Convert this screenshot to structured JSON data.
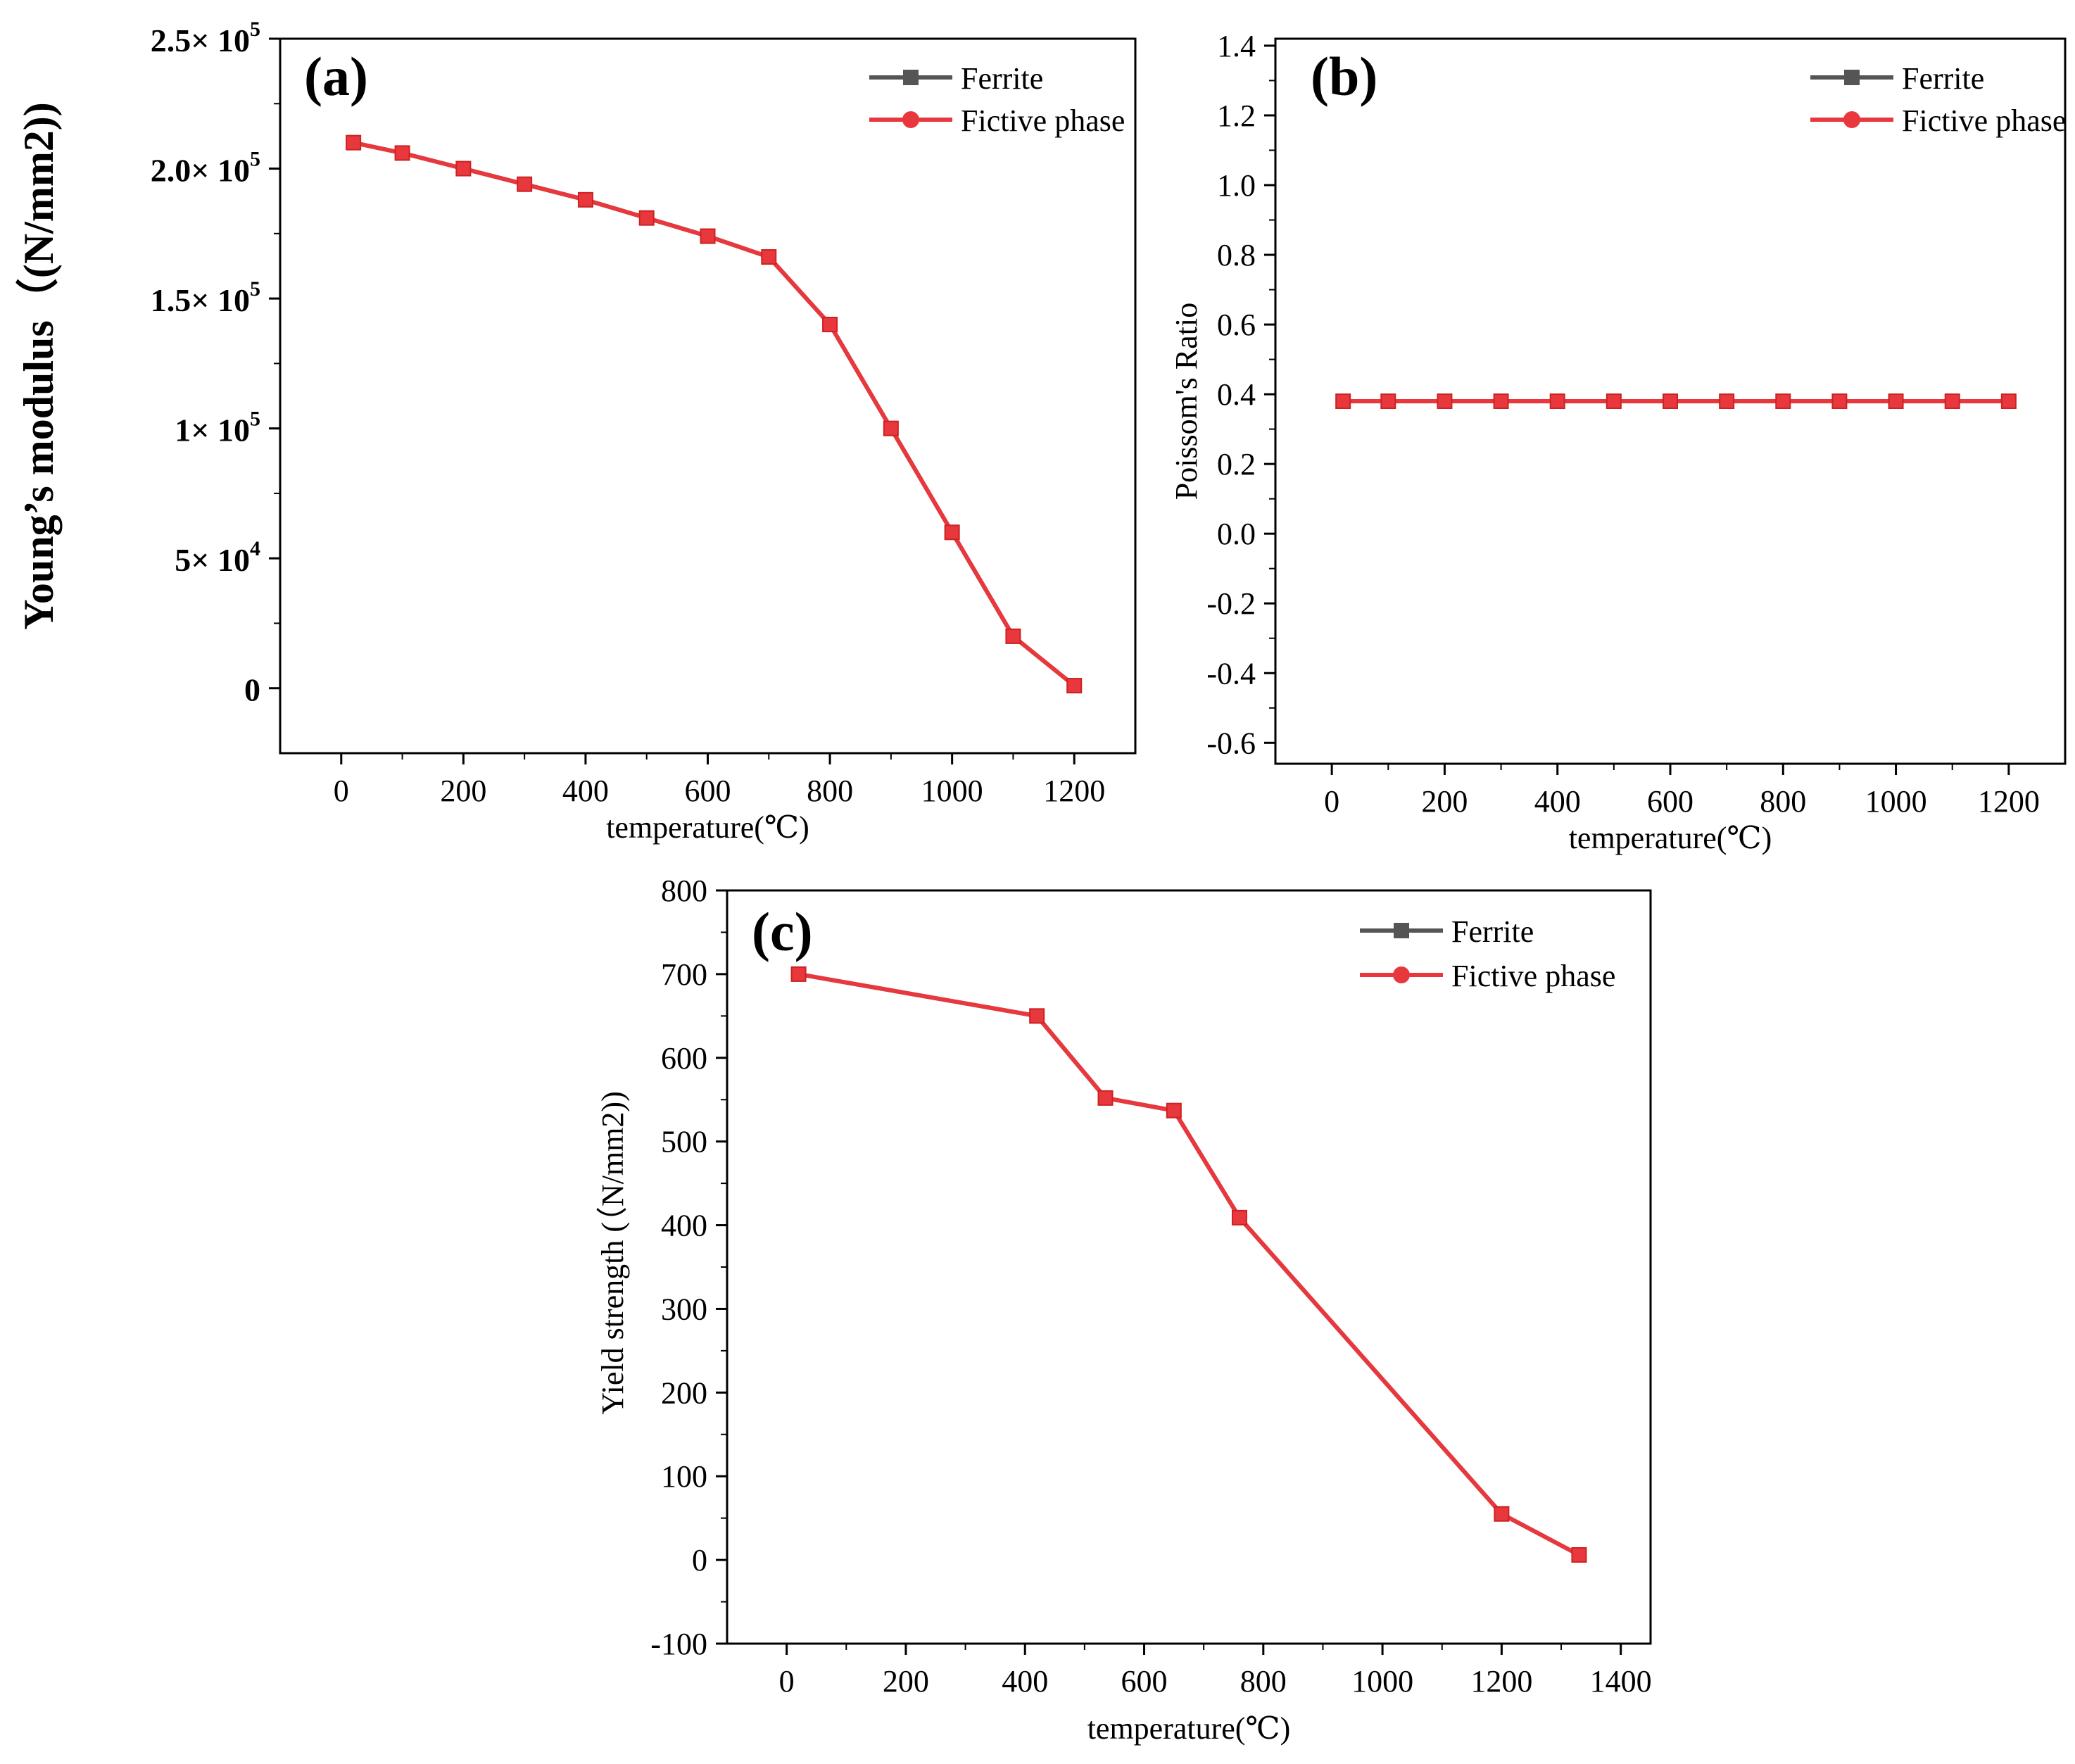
{
  "chart_data": [
    {
      "type": "line",
      "panel_label": "(a)",
      "xlabel": "temperature(℃)",
      "ylabel": "Young’s modulus（(N/mm2))",
      "xlim": [
        -100,
        1300
      ],
      "ylim": [
        -25000,
        250000
      ],
      "x_ticks": [
        0,
        200,
        400,
        600,
        800,
        1000,
        1200
      ],
      "x_tick_labels": [
        "0",
        "200",
        "400",
        "600",
        "800",
        "1000",
        "1200"
      ],
      "y_ticks": [
        0,
        50000,
        100000,
        150000,
        200000,
        250000
      ],
      "y_tick_labels": [
        {
          "mantissa": "0",
          "exp": ""
        },
        {
          "mantissa": "5× 10",
          "exp": "4"
        },
        {
          "mantissa": "1× 10",
          "exp": "5"
        },
        {
          "mantissa": "1.5× 10",
          "exp": "5"
        },
        {
          "mantissa": "2.0× 10",
          "exp": "5"
        },
        {
          "mantissa": "2.5× 10",
          "exp": "5"
        }
      ],
      "legend": [
        "Ferrite",
        "Fictive phase"
      ],
      "series": [
        {
          "name": "Ferrite",
          "color": "#555555",
          "marker": "square",
          "x": [
            20,
            100,
            200,
            300,
            400,
            500,
            600,
            700,
            800,
            900,
            1000,
            1100,
            1200
          ],
          "values": [
            210000,
            206000,
            200000,
            194000,
            188000,
            181000,
            174000,
            166000,
            140000,
            100000,
            60000,
            20000,
            1000
          ]
        },
        {
          "name": "Fictive phase",
          "color": "#e8383d",
          "marker": "circle",
          "x": [
            20,
            100,
            200,
            300,
            400,
            500,
            600,
            700,
            800,
            900,
            1000,
            1100,
            1200
          ],
          "values": [
            210000,
            206000,
            200000,
            194000,
            188000,
            181000,
            174000,
            166000,
            140000,
            100000,
            60000,
            20000,
            1000
          ]
        }
      ]
    },
    {
      "type": "line",
      "panel_label": "(b)",
      "xlabel": "temperature(℃)",
      "ylabel": "Poissom's Ratio",
      "xlim": [
        -100,
        1300
      ],
      "ylim": [
        -0.66,
        1.42
      ],
      "x_ticks": [
        0,
        200,
        400,
        600,
        800,
        1000,
        1200
      ],
      "x_tick_labels": [
        "0",
        "200",
        "400",
        "600",
        "800",
        "1000",
        "1200"
      ],
      "y_ticks": [
        -0.6,
        -0.4,
        -0.2,
        0.0,
        0.2,
        0.4,
        0.6,
        0.8,
        1.0,
        1.2,
        1.4
      ],
      "y_tick_labels": [
        "-0.6",
        "-0.4",
        "-0.2",
        "0.0",
        "0.2",
        "0.4",
        "0.6",
        "0.8",
        "1.0",
        "1.2",
        "1.4"
      ],
      "legend": [
        "Ferrite",
        "Fictive phase"
      ],
      "series": [
        {
          "name": "Ferrite",
          "color": "#555555",
          "marker": "square",
          "x": [
            20,
            100,
            200,
            300,
            400,
            500,
            600,
            700,
            800,
            900,
            1000,
            1100,
            1200
          ],
          "values": [
            0.38,
            0.38,
            0.38,
            0.38,
            0.38,
            0.38,
            0.38,
            0.38,
            0.38,
            0.38,
            0.38,
            0.38,
            0.38
          ]
        },
        {
          "name": "Fictive phase",
          "color": "#e8383d",
          "marker": "circle",
          "x": [
            20,
            100,
            200,
            300,
            400,
            500,
            600,
            700,
            800,
            900,
            1000,
            1100,
            1200
          ],
          "values": [
            0.38,
            0.38,
            0.38,
            0.38,
            0.38,
            0.38,
            0.38,
            0.38,
            0.38,
            0.38,
            0.38,
            0.38,
            0.38
          ]
        }
      ]
    },
    {
      "type": "line",
      "panel_label": "(c)",
      "xlabel": "temperature(℃)",
      "ylabel": "Yield strength (（N/mm2))",
      "xlim": [
        -100,
        1450
      ],
      "ylim": [
        -100,
        800
      ],
      "x_ticks": [
        0,
        200,
        400,
        600,
        800,
        1000,
        1200,
        1400
      ],
      "x_tick_labels": [
        "0",
        "200",
        "400",
        "600",
        "800",
        "1000",
        "1200",
        "1400"
      ],
      "y_ticks": [
        -100,
        0,
        100,
        200,
        300,
        400,
        500,
        600,
        700,
        800
      ],
      "y_tick_labels": [
        "-100",
        "0",
        "100",
        "200",
        "300",
        "400",
        "500",
        "600",
        "700",
        "800"
      ],
      "legend": [
        "Ferrite",
        "Fictive phase"
      ],
      "series": [
        {
          "name": "Ferrite",
          "color": "#555555",
          "marker": "square",
          "x": [
            20,
            420,
            535,
            650,
            760,
            1200,
            1330
          ],
          "values": [
            700,
            650,
            552,
            537,
            409,
            55,
            6
          ]
        },
        {
          "name": "Fictive phase",
          "color": "#e8383d",
          "marker": "circle",
          "x": [
            20,
            420,
            535,
            650,
            760,
            1200,
            1330
          ],
          "values": [
            700,
            650,
            552,
            537,
            409,
            55,
            6
          ]
        }
      ]
    }
  ]
}
